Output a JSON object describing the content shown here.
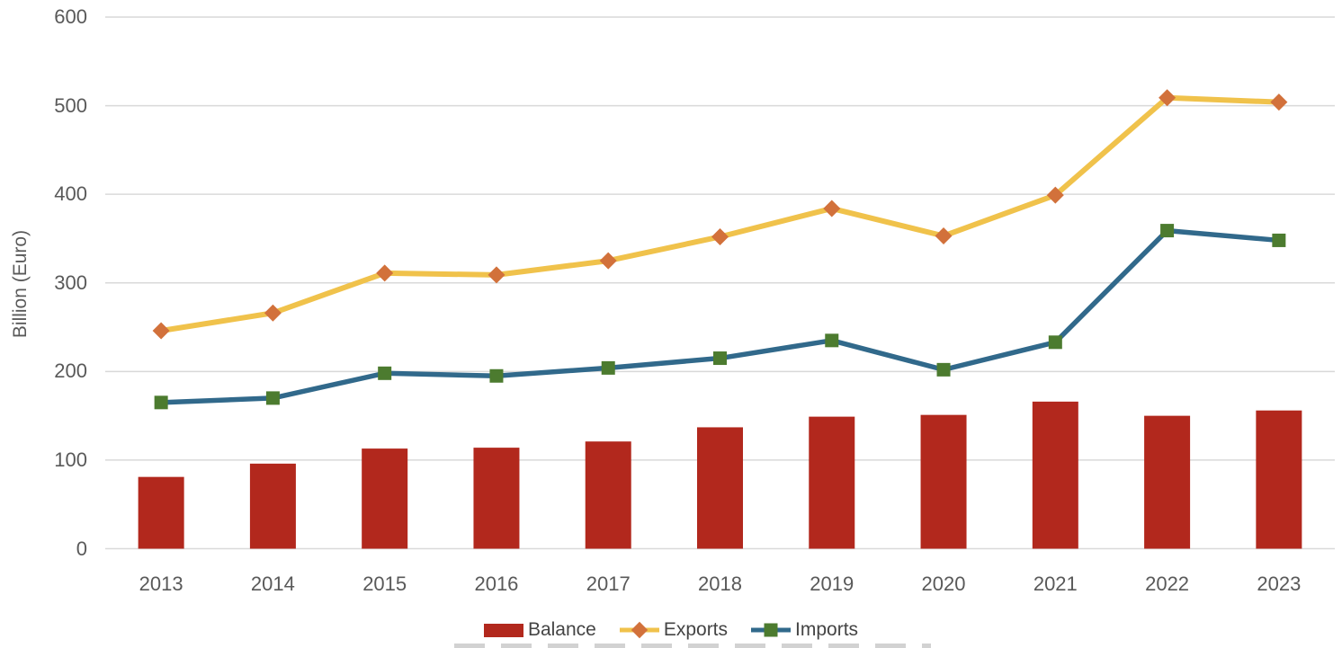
{
  "chart_data": {
    "type": "combo",
    "title": "",
    "ylabel": "Billion (Euro)",
    "xlabel": "",
    "ylim": [
      0,
      600
    ],
    "yticks": [
      0,
      100,
      200,
      300,
      400,
      500,
      600
    ],
    "grid": "horizontal-gridlines",
    "legend_position": "bottom-center",
    "categories": [
      "2013",
      "2014",
      "2015",
      "2016",
      "2017",
      "2018",
      "2019",
      "2020",
      "2021",
      "2022",
      "2023"
    ],
    "series": [
      {
        "name": "Balance",
        "type": "bar",
        "color": "#B2281D",
        "values": [
          81,
          96,
          113,
          114,
          121,
          137,
          149,
          151,
          166,
          150,
          156
        ]
      },
      {
        "name": "Exports",
        "type": "line",
        "color": "#F0C24B",
        "marker": "diamond",
        "marker_color": "#D2713B",
        "values": [
          246,
          266,
          311,
          309,
          325,
          352,
          384,
          353,
          399,
          509,
          504
        ]
      },
      {
        "name": "Imports",
        "type": "line",
        "color": "#31698B",
        "marker": "square",
        "marker_color": "#4C7B2F",
        "values": [
          165,
          170,
          198,
          195,
          204,
          215,
          235,
          202,
          233,
          359,
          348
        ]
      }
    ]
  },
  "style": {
    "background": "#FFFFFF",
    "grid_color": "#D9D9D9",
    "axis_text_color": "#595959",
    "legend_text_color": "#444444"
  }
}
